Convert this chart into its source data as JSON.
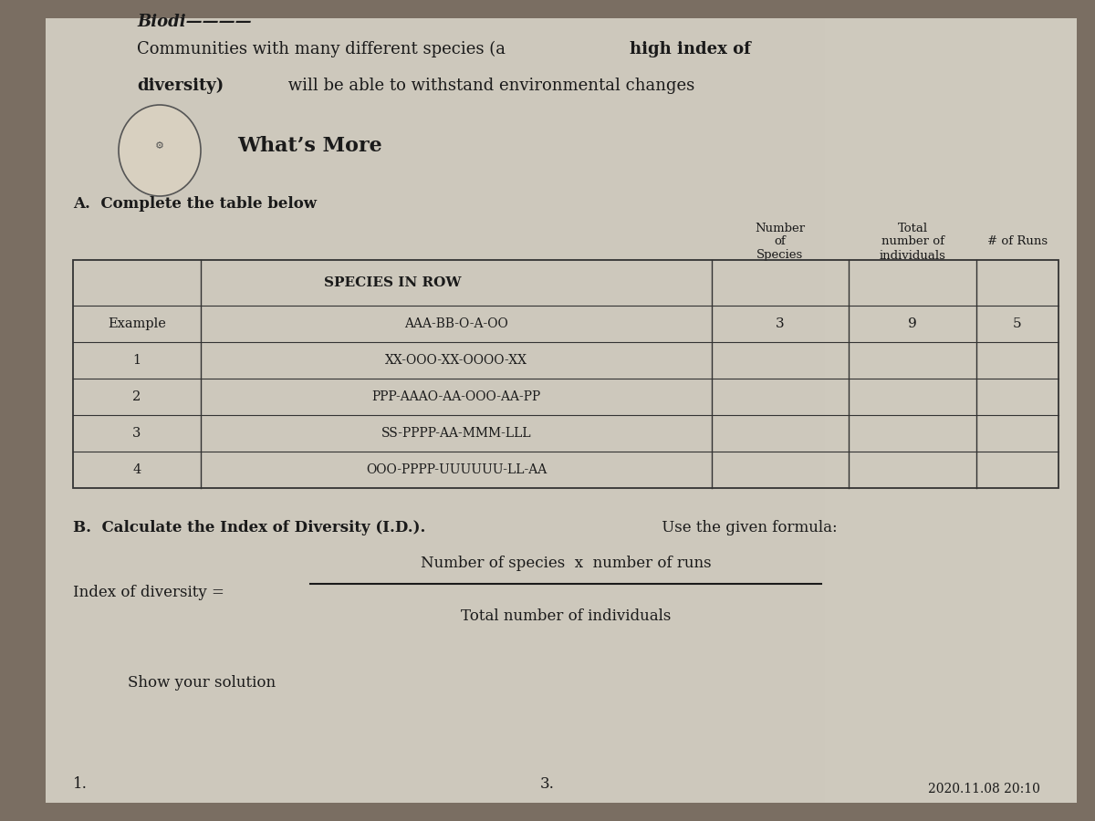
{
  "bg_color": "#8a7a6a",
  "paper_color": "#d0cbbf",
  "paper_color2": "#ccc5b5",
  "title_normal": "Communities with many different species (a ",
  "title_bold1": "high index of",
  "title_line2_bold": "diversity)",
  "title_line2_normal": " will be able to withstand environmental changes",
  "section_title": "What’s More",
  "instruction_a": "A.  Complete the table below",
  "row_labels": [
    "Example",
    "1",
    "2",
    "3",
    "4"
  ],
  "species_in_row": [
    "AAA-BB-O-A-OO",
    "XX-OOO-XX-OOOO-XX",
    "PPP-AAAO-AA-OOO-AA-PP",
    "SS-PPPP-AA-MMM-LLL",
    "OOO-PPPP-UUUUUU-LL-AA"
  ],
  "num_species": [
    "3",
    "",
    "",
    "",
    ""
  ],
  "total_individuals": [
    "9",
    "",
    "",
    "",
    ""
  ],
  "num_runs": [
    "5",
    "",
    "",
    "",
    ""
  ],
  "instruction_b_bold": "B.  Calculate the Index of Diversity (I.D.).",
  "instruction_b_normal": " Use the given formula:",
  "formula_left": "Index of diversity =",
  "formula_numerator": "Number of species  x  number of runs",
  "formula_denominator": "Total number of individuals",
  "show_solution": "Show your solution",
  "footer_left": "1.",
  "footer_mid": "3.",
  "footer_right": "2020.11.08 20:10"
}
